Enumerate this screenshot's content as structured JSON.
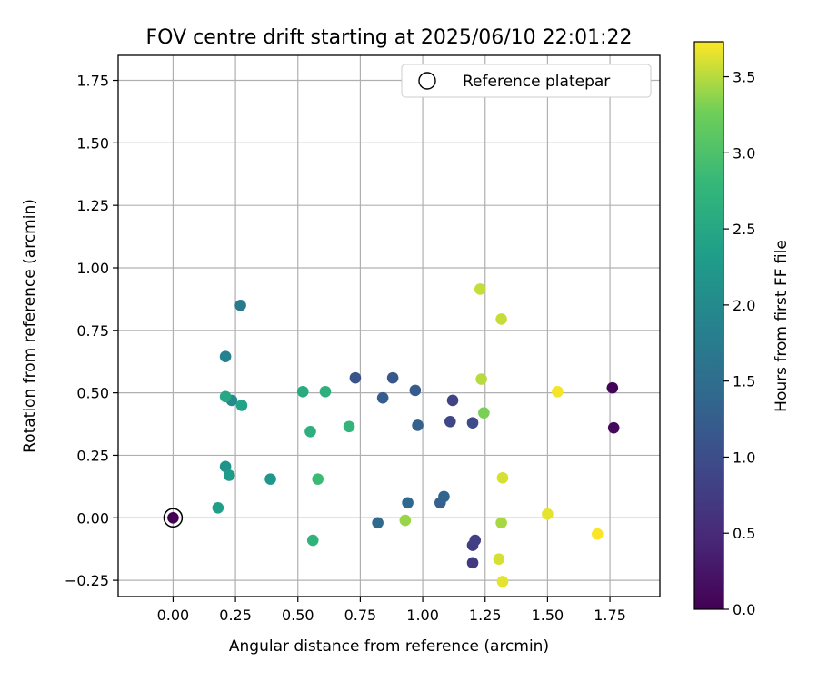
{
  "chart_data": {
    "type": "scatter",
    "title": "FOV centre drift starting at 2025/06/10 22:01:22",
    "xlabel": "Angular distance from reference (arcmin)",
    "ylabel": "Rotation from reference (arcmin)",
    "xlim": [
      -0.22,
      1.95
    ],
    "ylim": [
      -0.315,
      1.85
    ],
    "xticks": [
      "0.00",
      "0.25",
      "0.50",
      "0.75",
      "1.00",
      "1.25",
      "1.50",
      "1.75"
    ],
    "xtick_values": [
      0,
      0.25,
      0.5,
      0.75,
      1.0,
      1.25,
      1.5,
      1.75
    ],
    "yticks": [
      "−0.25",
      "0.00",
      "0.25",
      "0.50",
      "0.75",
      "1.00",
      "1.25",
      "1.50",
      "1.75"
    ],
    "ytick_values": [
      -0.25,
      0,
      0.25,
      0.5,
      0.75,
      1.0,
      1.25,
      1.5,
      1.75
    ],
    "grid": true,
    "colormap": "viridis",
    "colorbar": {
      "label": "Hours from first FF file",
      "range": [
        0,
        3.73
      ],
      "ticks": [
        "0.0",
        "0.5",
        "1.0",
        "1.5",
        "2.0",
        "2.5",
        "3.0",
        "3.5"
      ],
      "tick_values": [
        0,
        0.5,
        1.0,
        1.5,
        2.0,
        2.5,
        3.0,
        3.5
      ]
    },
    "legend": {
      "placement": "upper-right",
      "entries": [
        "Reference platepar"
      ]
    },
    "reference_point": {
      "x": 0.0,
      "y": 0.0,
      "hours": 0.0
    },
    "points": [
      {
        "x": 0.0,
        "y": 0.0,
        "hours": 0.0
      },
      {
        "x": 1.76,
        "y": 0.52,
        "hours": 0.05
      },
      {
        "x": 1.765,
        "y": 0.36,
        "hours": 0.1
      },
      {
        "x": 1.2,
        "y": -0.18,
        "hours": 0.7
      },
      {
        "x": 1.2,
        "y": -0.11,
        "hours": 0.75
      },
      {
        "x": 1.21,
        "y": -0.09,
        "hours": 0.8
      },
      {
        "x": 1.12,
        "y": 0.47,
        "hours": 0.85
      },
      {
        "x": 1.11,
        "y": 0.385,
        "hours": 0.9
      },
      {
        "x": 1.2,
        "y": 0.38,
        "hours": 0.95
      },
      {
        "x": 0.73,
        "y": 0.56,
        "hours": 1.1
      },
      {
        "x": 0.88,
        "y": 0.56,
        "hours": 1.15
      },
      {
        "x": 0.97,
        "y": 0.51,
        "hours": 1.2
      },
      {
        "x": 0.84,
        "y": 0.48,
        "hours": 1.25
      },
      {
        "x": 0.98,
        "y": 0.37,
        "hours": 1.3
      },
      {
        "x": 1.085,
        "y": 0.085,
        "hours": 1.35
      },
      {
        "x": 1.07,
        "y": 0.06,
        "hours": 1.3
      },
      {
        "x": 0.94,
        "y": 0.06,
        "hours": 1.4
      },
      {
        "x": 0.82,
        "y": -0.02,
        "hours": 1.45
      },
      {
        "x": 0.27,
        "y": 0.85,
        "hours": 1.7
      },
      {
        "x": 0.21,
        "y": 0.645,
        "hours": 1.85
      },
      {
        "x": 0.235,
        "y": 0.47,
        "hours": 2.0
      },
      {
        "x": 0.21,
        "y": 0.205,
        "hours": 2.15
      },
      {
        "x": 0.39,
        "y": 0.155,
        "hours": 2.2
      },
      {
        "x": 0.225,
        "y": 0.17,
        "hours": 2.3
      },
      {
        "x": 0.18,
        "y": 0.04,
        "hours": 2.35
      },
      {
        "x": 0.275,
        "y": 0.45,
        "hours": 2.4
      },
      {
        "x": 0.21,
        "y": 0.485,
        "hours": 2.5
      },
      {
        "x": 0.52,
        "y": 0.505,
        "hours": 2.55
      },
      {
        "x": 0.61,
        "y": 0.505,
        "hours": 2.65
      },
      {
        "x": 0.55,
        "y": 0.345,
        "hours": 2.65
      },
      {
        "x": 0.705,
        "y": 0.365,
        "hours": 2.75
      },
      {
        "x": 0.56,
        "y": -0.09,
        "hours": 2.7
      },
      {
        "x": 0.58,
        "y": 0.155,
        "hours": 2.85
      },
      {
        "x": 0.93,
        "y": -0.01,
        "hours": 3.4
      },
      {
        "x": 1.245,
        "y": 0.42,
        "hours": 3.3
      },
      {
        "x": 1.235,
        "y": 0.555,
        "hours": 3.5
      },
      {
        "x": 1.23,
        "y": 0.915,
        "hours": 3.55
      },
      {
        "x": 1.315,
        "y": 0.795,
        "hours": 3.55
      },
      {
        "x": 1.315,
        "y": -0.02,
        "hours": 3.45
      },
      {
        "x": 1.32,
        "y": 0.16,
        "hours": 3.6
      },
      {
        "x": 1.305,
        "y": -0.165,
        "hours": 3.6
      },
      {
        "x": 1.32,
        "y": -0.255,
        "hours": 3.65
      },
      {
        "x": 1.5,
        "y": 0.015,
        "hours": 3.65
      },
      {
        "x": 1.54,
        "y": 0.505,
        "hours": 3.7
      },
      {
        "x": 1.7,
        "y": -0.065,
        "hours": 3.72
      }
    ]
  }
}
